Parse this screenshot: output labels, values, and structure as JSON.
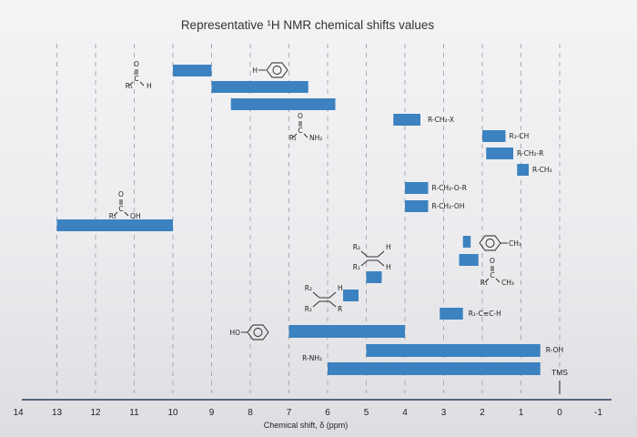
{
  "chart_data": {
    "type": "bar",
    "orientation": "horizontal-ranges",
    "title": "Representative ¹H NMR chemical shifts values",
    "xlabel": "Chemical shift, δ (ppm)",
    "ylabel": "",
    "x_reversed": true,
    "xlim": [
      14,
      -1
    ],
    "ticks": [
      "14",
      "13",
      "12",
      "11",
      "10",
      "9",
      "8",
      "7",
      "6",
      "5",
      "4",
      "3",
      "2",
      "1",
      "0",
      "-1"
    ],
    "grid": "dashed vertical gridlines",
    "colors": {
      "bar": "#3c82c0",
      "axis": "#2a3a5e",
      "grid": "#9a9aa0"
    },
    "reference": {
      "label": "TMS",
      "value": 0
    },
    "ranges": [
      {
        "group": "aldehyde",
        "label": "R₁-C(=O)-H",
        "from": 10.0,
        "to": 9.0
      },
      {
        "group": "aromatic",
        "label": "H-Ph",
        "from": 9.0,
        "to": 6.5
      },
      {
        "group": "amide",
        "label": "R₁-C(=O)-NH₂",
        "from": 8.5,
        "to": 5.8
      },
      {
        "group": "alkyl halide",
        "label": "R-CH₂-X",
        "from": 4.3,
        "to": 3.6
      },
      {
        "group": "methine",
        "label": "R₃-CH",
        "from": 2.0,
        "to": 1.4
      },
      {
        "group": "methylene",
        "label": "R-CH₂-R",
        "from": 1.9,
        "to": 1.2
      },
      {
        "group": "methyl",
        "label": "R-CH₃",
        "from": 1.1,
        "to": 0.8
      },
      {
        "group": "ether",
        "label": "R-CH₂-O-R",
        "from": 4.0,
        "to": 3.4
      },
      {
        "group": "alcohol",
        "label": "R-CH₂-OH",
        "from": 4.0,
        "to": 3.4
      },
      {
        "group": "carboxylic acid",
        "label": "R₁-C(=O)-OH",
        "from": 13.0,
        "to": 10.0
      },
      {
        "group": "benzylic",
        "label": "Ph-CH₃",
        "from": 2.5,
        "to": 2.3
      },
      {
        "group": "ketone",
        "label": "R₁-C(=O)-CH₃",
        "from": 2.6,
        "to": 2.1
      },
      {
        "group": "vinyl (1,1)",
        "label": "R₂C=CH₂",
        "from": 5.0,
        "to": 4.6
      },
      {
        "group": "vinyl",
        "label": "R₂C=C(R)H",
        "from": 5.6,
        "to": 5.2
      },
      {
        "group": "alkyne",
        "label": "R₁-C≡C-H",
        "from": 3.1,
        "to": 2.5
      },
      {
        "group": "phenol",
        "label": "HO-Ph",
        "from": 7.0,
        "to": 4.0
      },
      {
        "group": "alcohol OH",
        "label": "R-OH",
        "from": 5.0,
        "to": 0.5
      },
      {
        "group": "amine",
        "label": "R-NH₂",
        "from": 6.0,
        "to": 0.5
      }
    ]
  }
}
